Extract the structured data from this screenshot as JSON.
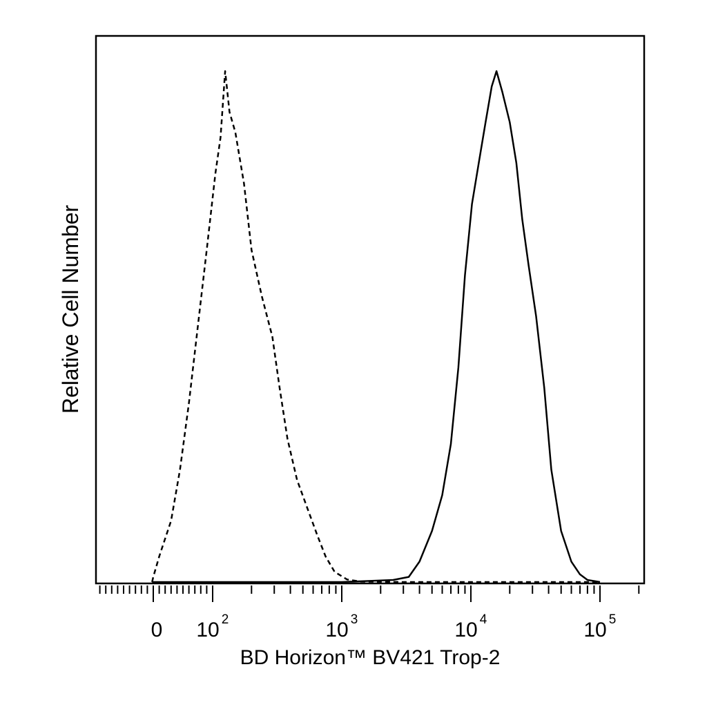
{
  "chart_data": {
    "type": "line",
    "title": "",
    "xlabel": "BD Horizon™ BV421 Trop-2",
    "ylabel": "Relative Cell Number",
    "x_scale": "biexponential",
    "xlim": [
      -100,
      200000
    ],
    "ylim": [
      0,
      1.0
    ],
    "grid": false,
    "legend": "none",
    "x_ticks": [
      {
        "value": 0,
        "base": "0",
        "exp": ""
      },
      {
        "value": 100,
        "base": "10",
        "exp": "2"
      },
      {
        "value": 1000,
        "base": "10",
        "exp": "3"
      },
      {
        "value": 10000,
        "base": "10",
        "exp": "4"
      },
      {
        "value": 100000,
        "base": "10",
        "exp": "5"
      }
    ],
    "series": [
      {
        "style": "dashed",
        "color": "#000000",
        "points": [
          [
            -2,
            0.0
          ],
          [
            0,
            0.01
          ],
          [
            10,
            0.05
          ],
          [
            30,
            0.12
          ],
          [
            45,
            0.22
          ],
          [
            60,
            0.35
          ],
          [
            75,
            0.5
          ],
          [
            90,
            0.65
          ],
          [
            105,
            0.8
          ],
          [
            115,
            0.87
          ],
          [
            125,
            1.0
          ],
          [
            135,
            0.92
          ],
          [
            150,
            0.88
          ],
          [
            175,
            0.78
          ],
          [
            200,
            0.65
          ],
          [
            240,
            0.56
          ],
          [
            290,
            0.48
          ],
          [
            330,
            0.38
          ],
          [
            380,
            0.28
          ],
          [
            450,
            0.2
          ],
          [
            550,
            0.14
          ],
          [
            650,
            0.09
          ],
          [
            750,
            0.05
          ],
          [
            880,
            0.02
          ],
          [
            1100,
            0.005
          ],
          [
            1400,
            0.001
          ],
          [
            3000,
            0.0
          ],
          [
            100000,
            0.0
          ]
        ]
      },
      {
        "style": "solid",
        "color": "#000000",
        "points": [
          [
            -2,
            0.0
          ],
          [
            1000,
            0.0
          ],
          [
            2500,
            0.004
          ],
          [
            3300,
            0.01
          ],
          [
            4000,
            0.04
          ],
          [
            5000,
            0.1
          ],
          [
            6000,
            0.17
          ],
          [
            7000,
            0.27
          ],
          [
            8000,
            0.42
          ],
          [
            9000,
            0.6
          ],
          [
            10200,
            0.74
          ],
          [
            11500,
            0.82
          ],
          [
            13000,
            0.9
          ],
          [
            14500,
            0.97
          ],
          [
            15800,
            1.0
          ],
          [
            17500,
            0.96
          ],
          [
            20000,
            0.9
          ],
          [
            22500,
            0.82
          ],
          [
            25000,
            0.71
          ],
          [
            28000,
            0.62
          ],
          [
            32000,
            0.52
          ],
          [
            37000,
            0.38
          ],
          [
            42000,
            0.22
          ],
          [
            50000,
            0.1
          ],
          [
            60000,
            0.04
          ],
          [
            70000,
            0.015
          ],
          [
            80000,
            0.004
          ],
          [
            100000,
            0.0
          ]
        ]
      }
    ]
  }
}
